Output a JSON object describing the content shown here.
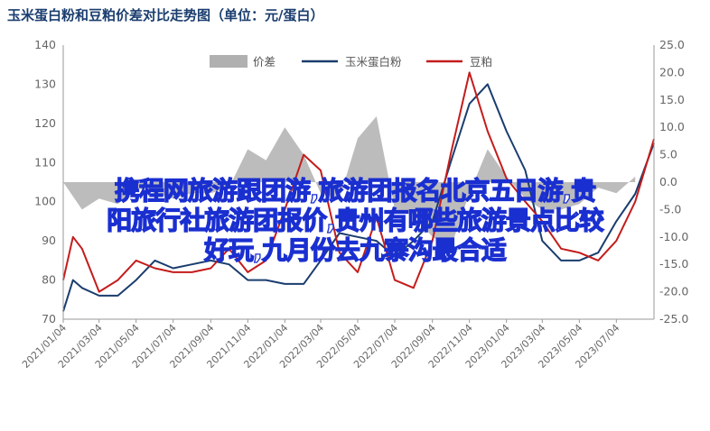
{
  "chart_data": {
    "type": "line",
    "title": "玉米蛋白粉和豆粕价差对比走势图（单位：元/蛋白）",
    "y_left": {
      "ticks": [
        "140",
        "130",
        "120",
        "110",
        "100",
        "90",
        "80",
        "70"
      ],
      "range": [
        70,
        140
      ]
    },
    "y_right": {
      "ticks": [
        "25.0",
        "20.0",
        "15.0",
        "10.0",
        "5.0",
        "0.0",
        "-5.0",
        "-10.0",
        "-15.0",
        "-20.0",
        "-25.0"
      ],
      "range": [
        -25,
        25
      ]
    },
    "x_ticks": [
      "2021/01/04",
      "2021/03/04",
      "2021/05/04",
      "2021/07/04",
      "2021/09/04",
      "2021/11/04",
      "2022/01/04",
      "2022/03/04",
      "2022/05/04",
      "2022/07/04",
      "2022/09/04",
      "2022/11/04",
      "2023/01/04",
      "2023/03/04",
      "2023/05/04",
      "2023/07/04"
    ],
    "x_range": [
      "2021/01/04",
      "2023/09/04"
    ],
    "grid": false,
    "legend_position": "top",
    "series": [
      {
        "name": "价差",
        "kind": "area",
        "axis": "right",
        "color": "#b0b0b0",
        "x": [
          "2021/01/04",
          "2021/02/04",
          "2021/03/04",
          "2021/04/04",
          "2021/05/04",
          "2021/06/04",
          "2021/07/04",
          "2021/08/04",
          "2021/09/04",
          "2021/10/04",
          "2021/11/04",
          "2021/12/04",
          "2022/01/04",
          "2022/02/04",
          "2022/03/04",
          "2022/04/04",
          "2022/05/04",
          "2022/06/04",
          "2022/07/04",
          "2022/08/04",
          "2022/09/04",
          "2022/10/04",
          "2022/11/04",
          "2022/12/04",
          "2023/01/04",
          "2023/02/04",
          "2023/03/04",
          "2023/04/04",
          "2023/05/04",
          "2023/06/04",
          "2023/07/04",
          "2023/08/04"
        ],
        "values": [
          0,
          -5,
          -3,
          -4,
          -1,
          -2,
          -3,
          -2,
          -2,
          -1,
          6,
          4,
          10,
          5,
          -2,
          -3,
          8,
          12,
          -5,
          -6,
          -10,
          -12,
          -2,
          6,
          1,
          -3,
          -5,
          -5,
          -4,
          -1,
          -2,
          1
        ]
      },
      {
        "name": "玉米蛋白粉",
        "kind": "line",
        "axis": "left",
        "color": "#1a3d6e",
        "x": [
          "2021/01/04",
          "2021/01/20",
          "2021/02/04",
          "2021/03/04",
          "2021/04/04",
          "2021/05/04",
          "2021/06/04",
          "2021/07/04",
          "2021/08/04",
          "2021/09/04",
          "2021/10/04",
          "2021/11/04",
          "2021/12/04",
          "2022/01/04",
          "2022/02/04",
          "2022/03/04",
          "2022/04/04",
          "2022/05/04",
          "2022/06/04",
          "2022/07/04",
          "2022/08/04",
          "2022/09/04",
          "2022/10/04",
          "2022/11/04",
          "2022/12/04",
          "2023/01/04",
          "2023/02/04",
          "2023/03/04",
          "2023/04/04",
          "2023/05/04",
          "2023/06/04",
          "2023/07/04",
          "2023/08/04",
          "2023/09/04"
        ],
        "values": [
          72,
          80,
          78,
          76,
          76,
          80,
          85,
          83,
          84,
          85,
          84,
          80,
          80,
          79,
          79,
          85,
          92,
          91,
          90,
          86,
          90,
          95,
          110,
          125,
          130,
          118,
          108,
          90,
          85,
          85,
          87,
          95,
          102,
          115
        ]
      },
      {
        "name": "豆粕",
        "kind": "line",
        "axis": "left",
        "color": "#c41c1c",
        "x": [
          "2021/01/04",
          "2021/01/20",
          "2021/02/04",
          "2021/03/04",
          "2021/04/04",
          "2021/05/04",
          "2021/06/04",
          "2021/07/04",
          "2021/08/04",
          "2021/09/04",
          "2021/10/04",
          "2021/11/04",
          "2021/12/04",
          "2022/01/04",
          "2022/02/04",
          "2022/03/04",
          "2022/04/04",
          "2022/05/04",
          "2022/06/04",
          "2022/07/04",
          "2022/08/04",
          "2022/09/04",
          "2022/10/04",
          "2022/11/04",
          "2022/12/04",
          "2023/01/04",
          "2023/02/04",
          "2023/03/04",
          "2023/04/04",
          "2023/05/04",
          "2023/06/04",
          "2023/07/04",
          "2023/08/04",
          "2023/09/04"
        ],
        "values": [
          80,
          91,
          88,
          77,
          80,
          85,
          83,
          82,
          82,
          83,
          88,
          82,
          85,
          98,
          112,
          108,
          87,
          82,
          96,
          80,
          78,
          90,
          112,
          133,
          118,
          106,
          100,
          95,
          88,
          87,
          85,
          90,
          100,
          116
        ]
      }
    ]
  },
  "watermark": {
    "line1": "携程网旅游跟团游,旅游团报名北京五日游,贵",
    "line2": "阳旅行社旅游团报价,贵州有哪些旅游景点比较",
    "line3": "好玩,九月份去九寨沟最合适"
  }
}
